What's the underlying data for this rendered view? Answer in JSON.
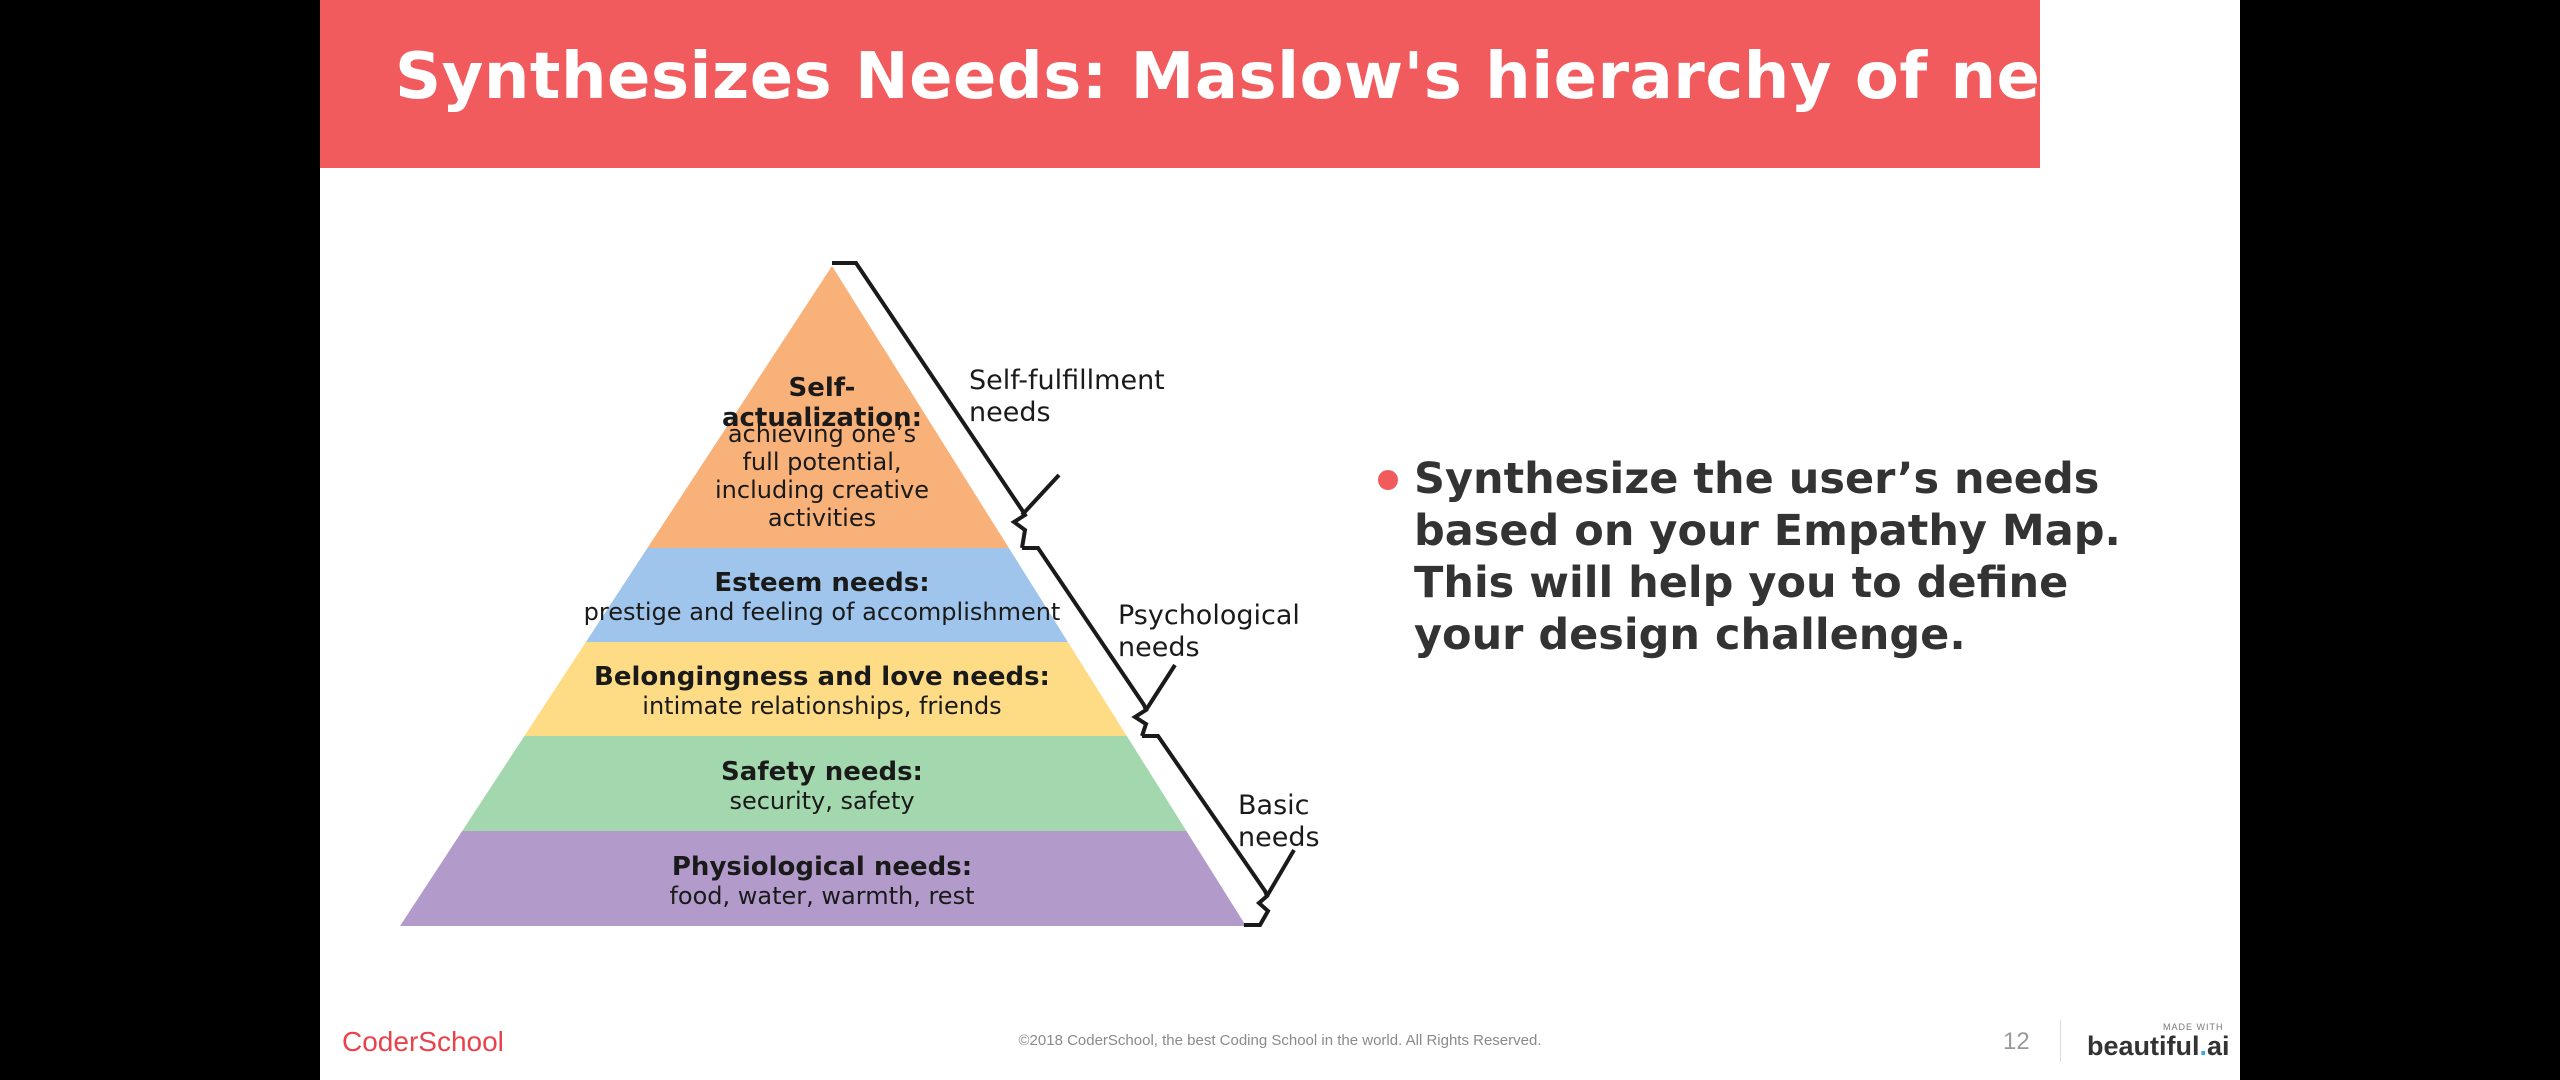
{
  "slide": {
    "title": "Synthesizes Needs: Maslow's hierarchy of needs",
    "bullet": "Synthesize the user’s needs based on your Empathy Map. This will help you to define your design challenge."
  },
  "pyramid": {
    "levels": [
      {
        "title": "Self-\nactualization:",
        "desc": "achieving one’s\nfull potential,\nincluding creative\nactivities",
        "color": "#f9b17a"
      },
      {
        "title": "Esteem needs:",
        "desc": "prestige and feeling of accomplishment",
        "color": "#9fc5ec"
      },
      {
        "title": "Belongingness and love needs:",
        "desc": "intimate relationships, friends",
        "color": "#fedc85"
      },
      {
        "title": "Safety needs:",
        "desc": "security, safety",
        "color": "#a3d7ad"
      },
      {
        "title": "Physiological needs:",
        "desc": "food, water, warmth, rest",
        "color": "#b29bcb"
      }
    ],
    "groups": [
      {
        "label": "Self-fulfillment\nneeds"
      },
      {
        "label": "Psychological\nneeds"
      },
      {
        "label": "Basic\nneeds"
      }
    ]
  },
  "footer": {
    "logo": "CoderSchool",
    "copyright": "©2018 CoderSchool, the best Coding School in the world. All Rights Reserved.",
    "page_number": "12",
    "made_with": "MADE WITH",
    "brand_main": "beautiful",
    "brand_dot": ".",
    "brand_ai": "ai"
  }
}
